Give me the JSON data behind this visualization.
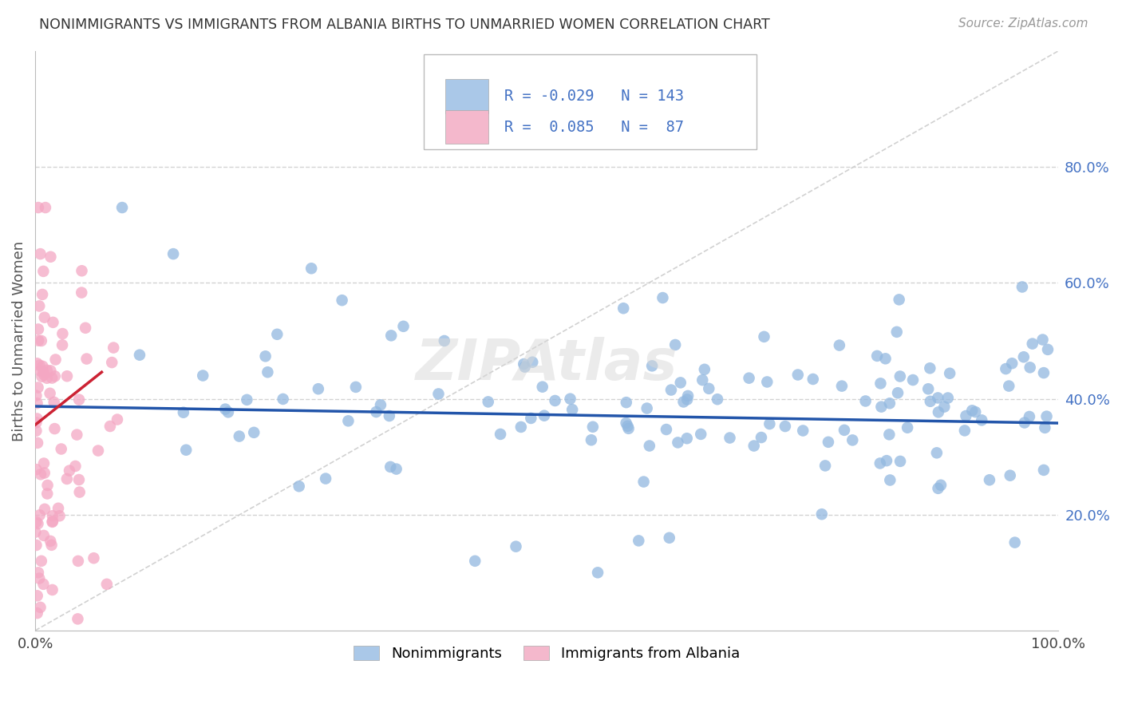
{
  "title": "NONIMMIGRANTS VS IMMIGRANTS FROM ALBANIA BIRTHS TO UNMARRIED WOMEN CORRELATION CHART",
  "source": "Source: ZipAtlas.com",
  "ylabel": "Births to Unmarried Women",
  "xlim": [
    0,
    1.0
  ],
  "ylim": [
    0,
    1.0
  ],
  "ytick_labels_right": [
    "20.0%",
    "40.0%",
    "60.0%",
    "80.0%"
  ],
  "ytick_positions_right": [
    0.2,
    0.4,
    0.6,
    0.8
  ],
  "blue_scatter_color": "#92b8e0",
  "pink_scatter_color": "#f4a7c3",
  "blue_line_color": "#2255aa",
  "pink_line_color": "#cc2233",
  "blue_legend_color": "#aac8e8",
  "pink_legend_color": "#f4b8cc",
  "trend_blue_slope": -0.029,
  "trend_blue_intercept": 0.387,
  "trend_pink_slope": 1.4,
  "trend_pink_intercept": 0.355,
  "background_color": "#ffffff",
  "grid_color": "#cccccc",
  "watermark_text": "ZIPAtlas",
  "watermark_color": "#d8d8d8",
  "title_color": "#333333",
  "source_color": "#999999",
  "ylabel_color": "#555555",
  "right_tick_color": "#4472c4",
  "legend_text_color": "#4472c4",
  "legend_N_color": "#333333"
}
